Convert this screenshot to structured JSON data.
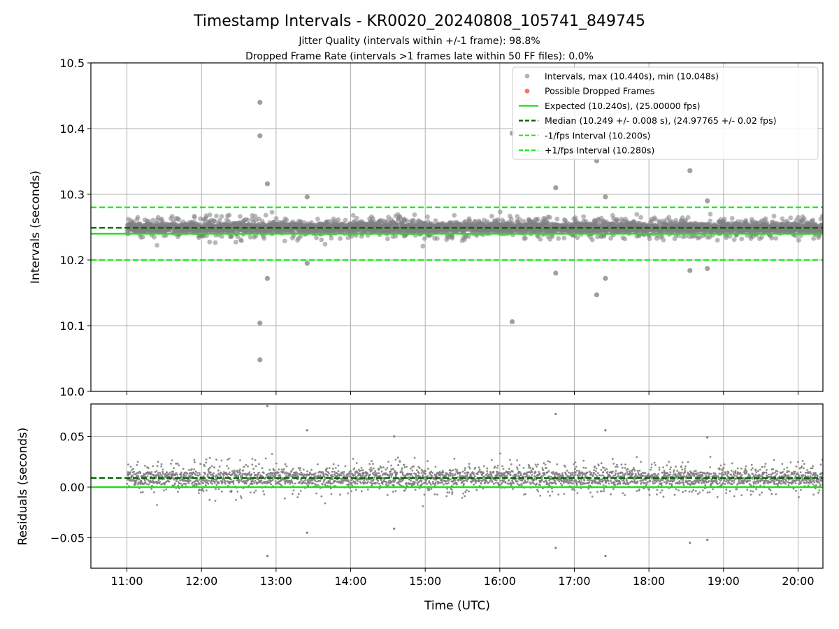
{
  "chart_data": [
    {
      "type": "scatter",
      "title": "Timestamp Intervals - KR0020_20240808_105741_849745",
      "subtitle_lines": [
        "Jitter Quality (intervals within +/-1 frame): 98.8%",
        "Dropped Frame Rate (intervals >1 frames late within 50 FF files): 0.0%"
      ],
      "xlabel": "",
      "ylabel": "Intervals (seconds)",
      "xlim": [
        "10:31",
        "20:20"
      ],
      "ylim": [
        10.0,
        10.5
      ],
      "yticks": [
        "10.0",
        "10.1",
        "10.2",
        "10.3",
        "10.4",
        "10.5"
      ],
      "grid": true,
      "legend_position": "top-right",
      "legend": [
        {
          "label": "Intervals, max (10.440s), min (10.048s)",
          "marker": "circle",
          "color": "#808080"
        },
        {
          "label": "Possible Dropped Frames",
          "marker": "circle",
          "color": "#ff3333"
        },
        {
          "label": "Expected (10.240s), (25.00000 fps)",
          "marker": "line-solid",
          "color": "#22dd22"
        },
        {
          "label": "Median (10.249 +/- 0.008 s), (24.97765 +/- 0.02 fps)",
          "marker": "line-dashed",
          "color": "#006400"
        },
        {
          "label": "-1/fps Interval (10.200s)",
          "marker": "line-dashed",
          "color": "#22ee22"
        },
        {
          "label": "+1/fps Interval (10.280s)",
          "marker": "line-dashed",
          "color": "#22ee22"
        }
      ],
      "reference_lines": {
        "expected": 10.24,
        "median": 10.249,
        "minus_one_fps": 10.2,
        "plus_one_fps": 10.28
      },
      "summary": {
        "max": 10.44,
        "min": 10.048,
        "median": 10.249,
        "median_spread": 0.008,
        "point_count_estimate": 3400
      },
      "outliers": [
        {
          "time": "12:47",
          "value": 10.44
        },
        {
          "time": "12:47",
          "value": 10.389
        },
        {
          "time": "12:53",
          "value": 10.316
        },
        {
          "time": "12:47",
          "value": 10.104
        },
        {
          "time": "12:47",
          "value": 10.048
        },
        {
          "time": "12:53",
          "value": 10.172
        },
        {
          "time": "13:25",
          "value": 10.296
        },
        {
          "time": "13:25",
          "value": 10.195
        },
        {
          "time": "16:10",
          "value": 10.393
        },
        {
          "time": "16:10",
          "value": 10.106
        },
        {
          "time": "16:45",
          "value": 10.31
        },
        {
          "time": "16:45",
          "value": 10.18
        },
        {
          "time": "17:18",
          "value": 10.351
        },
        {
          "time": "17:18",
          "value": 10.147
        },
        {
          "time": "17:25",
          "value": 10.296
        },
        {
          "time": "17:25",
          "value": 10.172
        },
        {
          "time": "18:33",
          "value": 10.336
        },
        {
          "time": "18:33",
          "value": 10.184
        },
        {
          "time": "18:47",
          "value": 10.29
        },
        {
          "time": "18:47",
          "value": 10.187
        }
      ],
      "colors": {
        "points": "#808080",
        "expected": "#22dd22",
        "median": "#006400",
        "bounds": "#22ee22",
        "grid": "#b0b0b0"
      }
    },
    {
      "type": "scatter",
      "title": "",
      "xlabel": "Time (UTC)",
      "ylabel": "Residuals (seconds)",
      "xlim": [
        "10:31",
        "20:20"
      ],
      "ylim": [
        -0.08,
        0.082
      ],
      "yticks": [
        "−0.05",
        "0.00",
        "0.05"
      ],
      "xticks": [
        "11:00",
        "12:00",
        "13:00",
        "14:00",
        "15:00",
        "16:00",
        "17:00",
        "18:00",
        "19:00",
        "20:00"
      ],
      "grid": true,
      "reference_lines": {
        "zero": 0.0,
        "median_residual": 0.009
      },
      "outliers": [
        {
          "time": "12:53",
          "value": 0.08
        },
        {
          "time": "12:53",
          "value": -0.068
        },
        {
          "time": "13:25",
          "value": 0.056
        },
        {
          "time": "13:25",
          "value": -0.045
        },
        {
          "time": "14:35",
          "value": 0.05
        },
        {
          "time": "14:35",
          "value": -0.041
        },
        {
          "time": "16:45",
          "value": 0.072
        },
        {
          "time": "16:45",
          "value": -0.06
        },
        {
          "time": "17:25",
          "value": 0.056
        },
        {
          "time": "17:25",
          "value": -0.068
        },
        {
          "time": "18:33",
          "value": -0.055
        },
        {
          "time": "18:47",
          "value": -0.052
        },
        {
          "time": "18:47",
          "value": 0.049
        }
      ],
      "colors": {
        "points": "#808080",
        "zero": "#22dd22",
        "median": "#006400",
        "grid": "#b0b0b0"
      }
    }
  ]
}
